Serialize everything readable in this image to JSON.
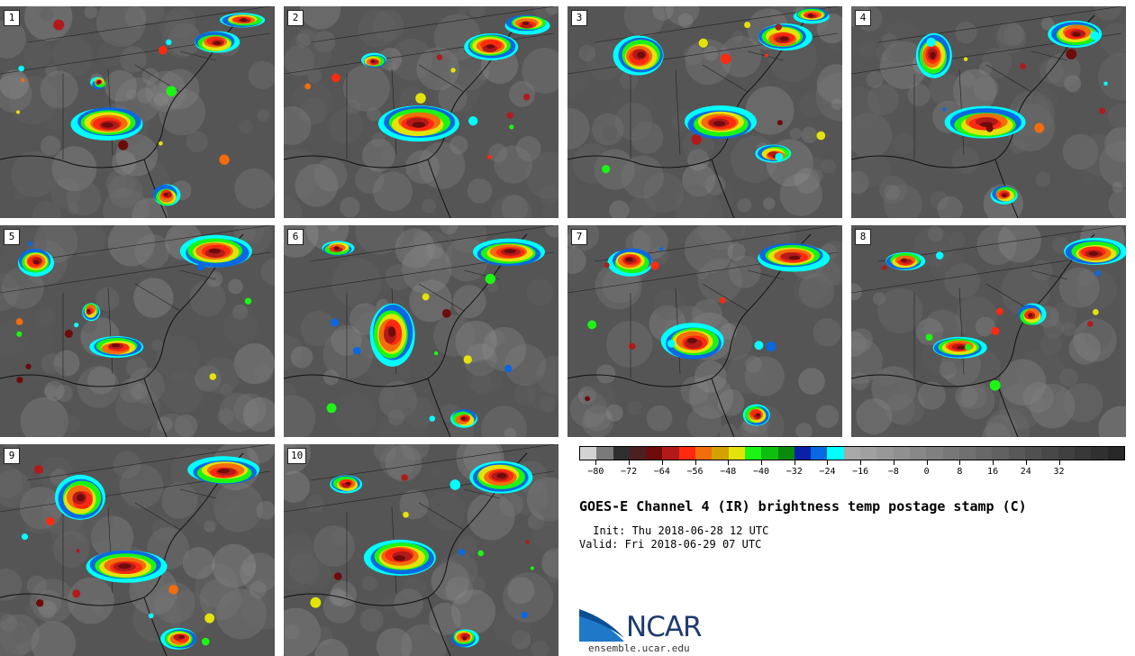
{
  "panels": [
    "1",
    "2",
    "3",
    "4",
    "5",
    "6",
    "7",
    "8",
    "9",
    "10"
  ],
  "colorbar": {
    "colors": [
      "#d3d3d3",
      "#7a7a7a",
      "#2f2f2f",
      "#4a2020",
      "#6e0b0b",
      "#b21a1a",
      "#ff2a0f",
      "#f26d0c",
      "#d4a200",
      "#e3e30a",
      "#1cf514",
      "#0fbf0f",
      "#0a8a0a",
      "#0a20a8",
      "#0a68e3",
      "#00ffff",
      "#a8a8a8",
      "#a0a0a0",
      "#989898",
      "#909090",
      "#888888",
      "#808080",
      "#787878",
      "#707070",
      "#686868",
      "#606060",
      "#585858",
      "#505050",
      "#484848",
      "#404040",
      "#383838",
      "#303030",
      "#282828"
    ],
    "tick_labels": [
      "−80",
      "−72",
      "−64",
      "−56",
      "−48",
      "−40",
      "−32",
      "−24",
      "−16",
      "−8",
      "0",
      "8",
      "16",
      "24",
      "32"
    ],
    "min": -80,
    "max": 44
  },
  "title": "GOES-E Channel 4 (IR) brightness temp postage stamp (C)",
  "init": " Init: Thu 2018-06-28 12 UTC",
  "valid": "Valid: Fri 2018-06-29 07 UTC",
  "logo": {
    "text": "NCAR",
    "url": "ensemble.ucar.edu"
  }
}
